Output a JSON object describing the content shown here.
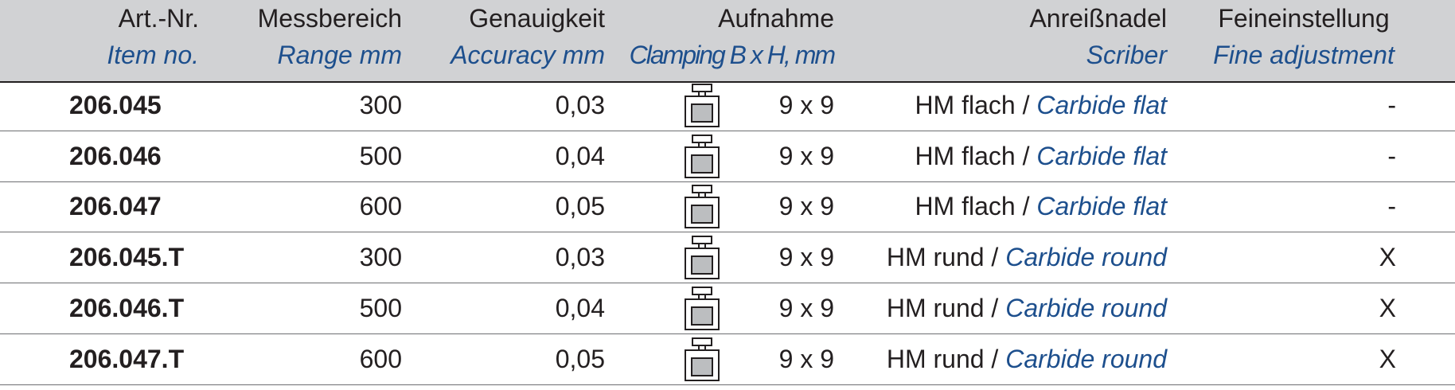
{
  "header": {
    "item_de": "Art.-Nr.",
    "item_en": "Item no.",
    "range_de": "Messbereich",
    "range_en": "Range mm",
    "accuracy_de": "Genauigkeit",
    "accuracy_en": "Accuracy mm",
    "clamping_de": "Aufnahme",
    "clamping_en": "Clamping B x H, mm",
    "scriber_de": "Anreißnadel",
    "scriber_en": "Scriber",
    "fine_de": "Feineinstellung",
    "fine_en": "Fine adjustment"
  },
  "rows": [
    {
      "item": "206.045",
      "range": "300",
      "accuracy": "0,03",
      "clamping": "9 x 9",
      "scriber_de": "HM flach /",
      "scriber_en": "Carbide flat",
      "fine": "-"
    },
    {
      "item": "206.046",
      "range": "500",
      "accuracy": "0,04",
      "clamping": "9 x 9",
      "scriber_de": "HM flach /",
      "scriber_en": "Carbide flat",
      "fine": "-"
    },
    {
      "item": "206.047",
      "range": "600",
      "accuracy": "0,05",
      "clamping": "9 x 9",
      "scriber_de": "HM flach /",
      "scriber_en": "Carbide flat",
      "fine": "-"
    },
    {
      "item": "206.045.T",
      "range": "300",
      "accuracy": "0,03",
      "clamping": "9 x 9",
      "scriber_de": "HM rund /",
      "scriber_en": "Carbide round",
      "fine": "X"
    },
    {
      "item": "206.046.T",
      "range": "500",
      "accuracy": "0,04",
      "clamping": "9 x 9",
      "scriber_de": "HM rund /",
      "scriber_en": "Carbide round",
      "fine": "X"
    },
    {
      "item": "206.047.T",
      "range": "600",
      "accuracy": "0,05",
      "clamping": "9 x 9",
      "scriber_de": "HM rund /",
      "scriber_en": "Carbide round",
      "fine": "X"
    }
  ],
  "icons": {
    "clamping": "clamp-holder-icon"
  },
  "colors": {
    "header_bg": "#d1d2d4",
    "english_text": "#1d4f8d",
    "text": "#231f20"
  }
}
